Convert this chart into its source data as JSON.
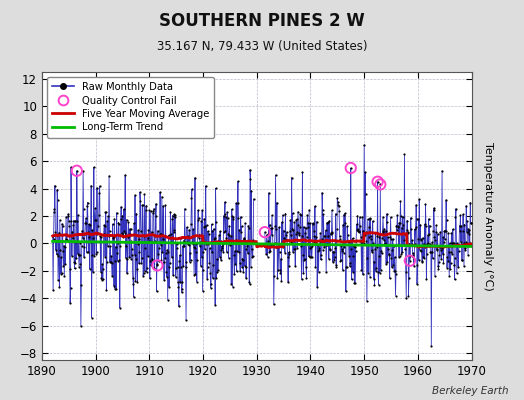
{
  "title": "SOUTHERN PINES 2 W",
  "subtitle": "35.167 N, 79.433 W (United States)",
  "ylabel": "Temperature Anomaly (°C)",
  "credit": "Berkeley Earth",
  "xlim": [
    1890,
    1970
  ],
  "ylim": [
    -8.5,
    12.5
  ],
  "yticks": [
    -8,
    -6,
    -4,
    -2,
    0,
    2,
    4,
    6,
    8,
    10,
    12
  ],
  "xticks": [
    1890,
    1900,
    1910,
    1920,
    1930,
    1940,
    1950,
    1960,
    1970
  ],
  "bg_color": "#dddddd",
  "plot_bg_color": "#ffffff",
  "raw_line_color": "#3333bb",
  "raw_dot_color": "#000000",
  "qc_fail_color": "#ff44cc",
  "moving_avg_color": "#cc0000",
  "trend_color": "#00bb00",
  "seed": 17,
  "trend_intercept": 0.18,
  "trend_slope": -0.003
}
